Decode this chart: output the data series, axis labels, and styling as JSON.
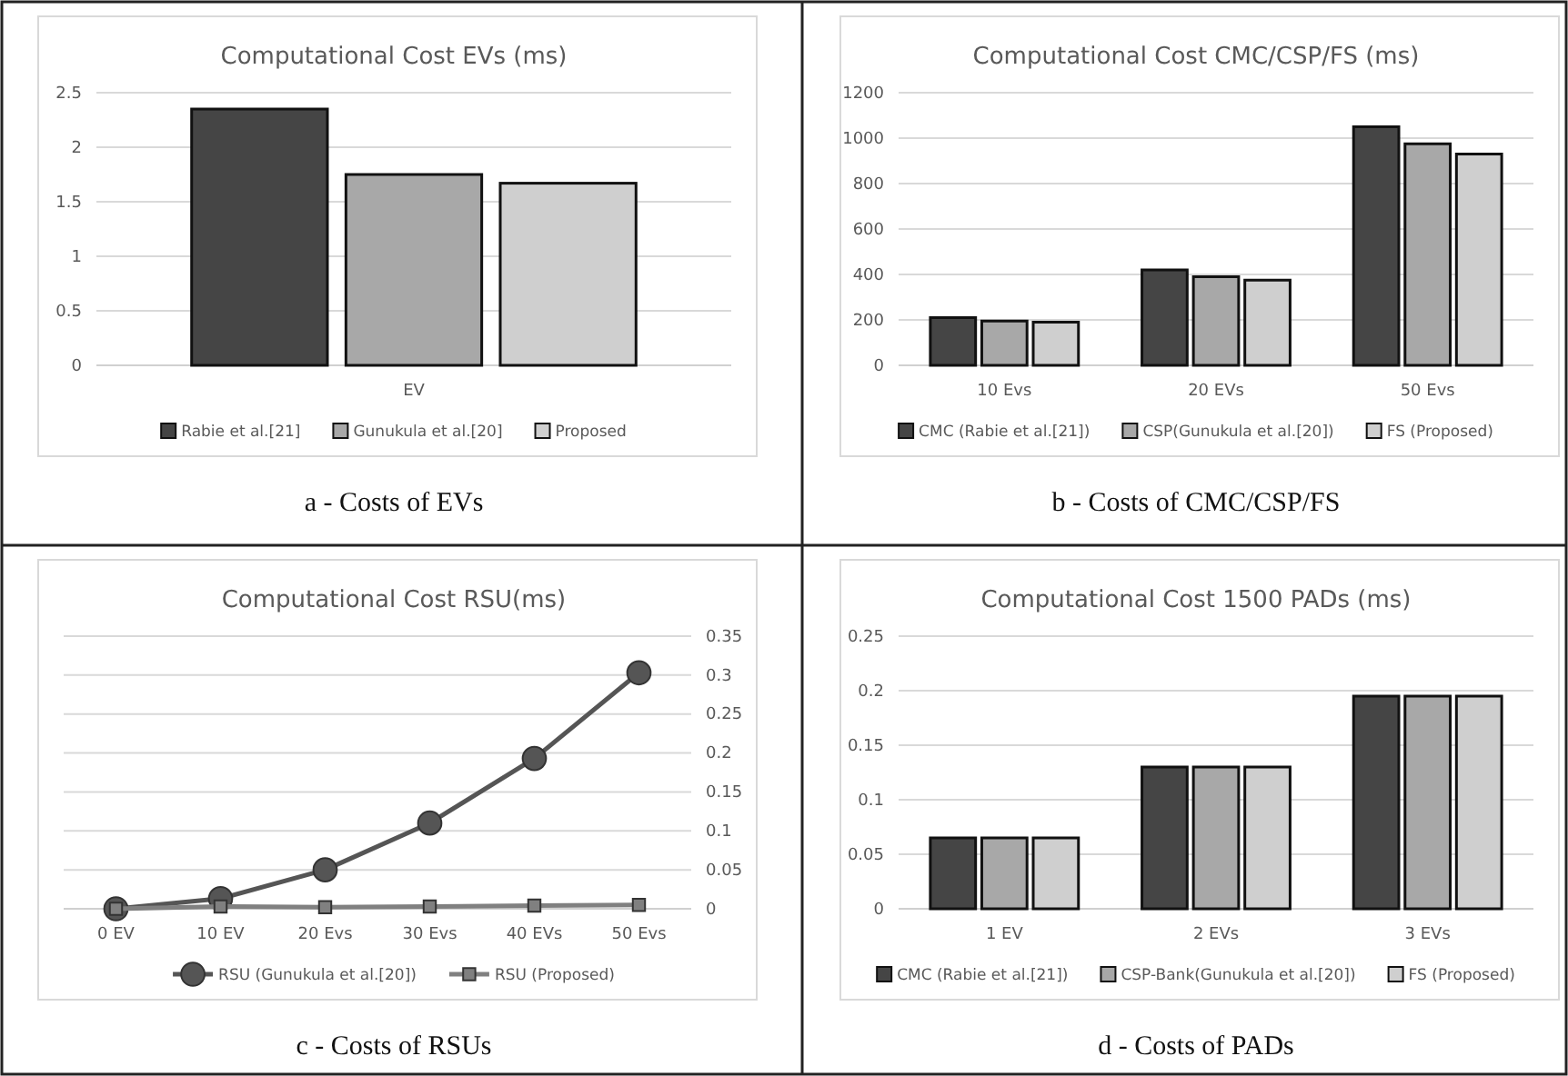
{
  "chart_data": [
    {
      "type": "bar",
      "title": "Computational Cost EVs (ms)",
      "categories": [
        "EV"
      ],
      "series": [
        {
          "name": "Rabie et al.[21]",
          "color": "#454545",
          "values": [
            2.35
          ]
        },
        {
          "name": "Gunukula et al.[20]",
          "color": "#a8a8a8",
          "values": [
            1.75
          ]
        },
        {
          "name": "Proposed",
          "color": "#cfcfcf",
          "values": [
            1.67
          ]
        }
      ],
      "ylim": [
        0,
        2.5
      ],
      "yticks": [
        0,
        0.5,
        1,
        1.5,
        2,
        2.5
      ],
      "grid": "y",
      "legend": "bottom",
      "annotations": [
        "a - Costs of EVs"
      ]
    },
    {
      "type": "bar",
      "title": "Computational Cost CMC/CSP/FS (ms)",
      "categories": [
        "10 Evs",
        "20 EVs",
        "50 Evs"
      ],
      "series": [
        {
          "name": "CMC (Rabie et al.[21])",
          "color": "#454545",
          "values": [
            210,
            420,
            1050
          ]
        },
        {
          "name": "CSP(Gunukula et al.[20])",
          "color": "#a8a8a8",
          "values": [
            195,
            390,
            975
          ]
        },
        {
          "name": "FS (Proposed)",
          "color": "#cfcfcf",
          "values": [
            190,
            375,
            930
          ]
        }
      ],
      "ylim": [
        0,
        1200
      ],
      "yticks": [
        0,
        200,
        400,
        600,
        800,
        1000,
        1200
      ],
      "grid": "y",
      "legend": "bottom",
      "annotations": [
        "b - Costs of CMC/CSP/FS"
      ]
    },
    {
      "type": "line",
      "title": "Computational Cost RSU(ms)",
      "categories": [
        "0 EV",
        "10 EV",
        "20 Evs",
        "30 Evs",
        "40 EVs",
        "50 Evs"
      ],
      "series": [
        {
          "name": "RSU (Gunukula et al.[20])",
          "color": "#555555",
          "marker": "circle",
          "axis": "y2",
          "values": [
            0,
            0.013,
            0.05,
            0.11,
            0.193,
            0.303
          ]
        },
        {
          "name": "RSU  (Proposed)",
          "color": "#808080",
          "marker": "square",
          "axis": "y2",
          "values": [
            0,
            0.003,
            0.002,
            0.003,
            0.004,
            0.005
          ]
        }
      ],
      "y2lim": [
        0,
        0.35
      ],
      "y2ticks": [
        0,
        0.05,
        0.1,
        0.15,
        0.2,
        0.25,
        0.3,
        0.35
      ],
      "grid": "y",
      "legend": "bottom",
      "annotations": [
        "c - Costs of RSUs"
      ]
    },
    {
      "type": "bar",
      "title": "Computational Cost 1500 PADs (ms)",
      "categories": [
        "1 EV",
        "2 EVs",
        "3 EVs"
      ],
      "series": [
        {
          "name": "CMC (Rabie et al.[21])",
          "color": "#454545",
          "values": [
            0.065,
            0.13,
            0.195
          ]
        },
        {
          "name": "CSP-Bank(Gunukula et al.[20])",
          "color": "#a8a8a8",
          "values": [
            0.065,
            0.13,
            0.195
          ]
        },
        {
          "name": "FS (Proposed)",
          "color": "#cfcfcf",
          "values": [
            0.065,
            0.13,
            0.195
          ]
        }
      ],
      "ylim": [
        0,
        0.25
      ],
      "yticks": [
        0,
        0.05,
        0.1,
        0.15,
        0.2,
        0.25
      ],
      "grid": "y",
      "legend": "bottom",
      "annotations": [
        "d - Costs of PADs"
      ]
    }
  ]
}
